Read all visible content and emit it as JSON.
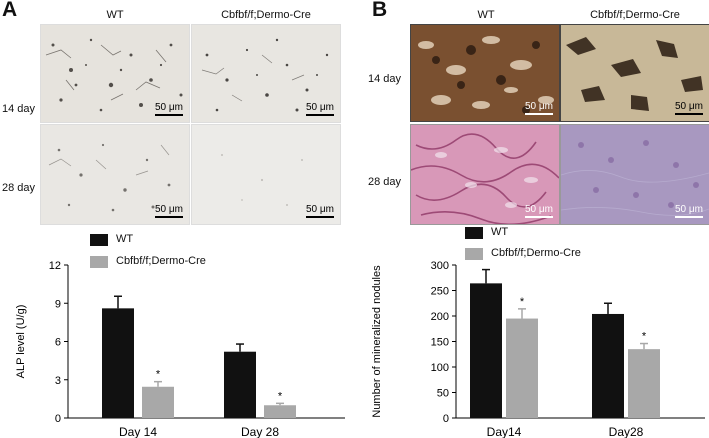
{
  "panelA": {
    "letter": "A",
    "col_labels": [
      "WT",
      "Cbfbf/f;Dermo-Cre"
    ],
    "row_labels": [
      "14 day",
      "28 day"
    ],
    "scale_label": "50 μm",
    "legend": [
      "WT",
      "Cbfbf/f;Dermo-Cre"
    ]
  },
  "panelB": {
    "letter": "B",
    "col_labels": [
      "WT",
      "Cbfbf/f;Dermo-Cre"
    ],
    "row_labels": [
      "14 day",
      "28 day"
    ],
    "scale_label": "50 μm",
    "legend": [
      "WT",
      "Cbfbf/f;Dermo-Cre"
    ]
  },
  "colors": {
    "wt": "#111111",
    "ko": "#a8a8a8"
  },
  "chart_data": [
    {
      "type": "bar",
      "categories": [
        "Day 14",
        "Day 28"
      ],
      "series": [
        {
          "name": "WT",
          "values": [
            8.6,
            5.2
          ],
          "errors": [
            0.95,
            0.6
          ]
        },
        {
          "name": "Cbfbf/f;Dermo-Cre",
          "values": [
            2.45,
            1.0
          ],
          "errors": [
            0.4,
            0.15
          ]
        }
      ],
      "significance": [
        "*",
        "*"
      ],
      "ylabel": "ALP level (U/g)",
      "xlabel": "",
      "ylim": [
        0,
        12
      ],
      "yticks": [
        "0",
        "3",
        "6",
        "9",
        "12"
      ],
      "grid": false,
      "legend_position": "top-left"
    },
    {
      "type": "bar",
      "categories": [
        "Day14",
        "Day28"
      ],
      "series": [
        {
          "name": "WT",
          "values": [
            264,
            204
          ],
          "errors": [
            27,
            21
          ]
        },
        {
          "name": "Cbfbf/f;Dermo-Cre",
          "values": [
            195,
            135
          ],
          "errors": [
            19,
            11
          ]
        }
      ],
      "significance": [
        "*",
        "*"
      ],
      "ylabel": "Number of mineralized nodules",
      "xlabel": "",
      "ylim": [
        0,
        300
      ],
      "yticks": [
        "0",
        "50",
        "100",
        "150",
        "200",
        "250",
        "300"
      ],
      "grid": false,
      "legend_position": "top-left"
    }
  ]
}
